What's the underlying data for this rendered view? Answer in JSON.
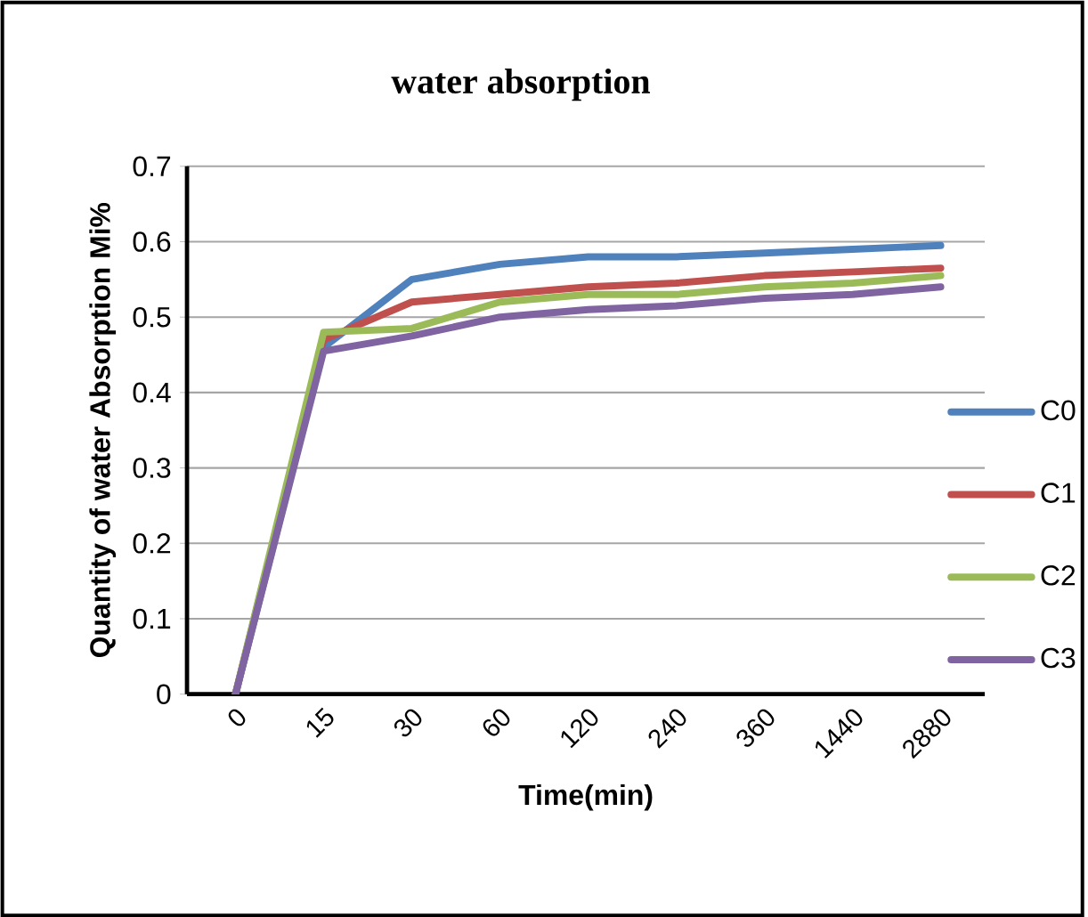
{
  "chart_data": {
    "type": "line",
    "title": "water absorption",
    "xlabel": "Time(min)",
    "ylabel": "Quantity of water Absorption Mi%",
    "categories": [
      "0",
      "15",
      "30",
      "60",
      "120",
      "240",
      "360",
      "1440",
      "2880"
    ],
    "series": [
      {
        "name": "C0",
        "color": "#4f81bd",
        "values": [
          0,
          0.46,
          0.55,
          0.57,
          0.58,
          0.58,
          0.585,
          0.59,
          0.595
        ]
      },
      {
        "name": "C1",
        "color": "#c0504d",
        "values": [
          0,
          0.47,
          0.52,
          0.53,
          0.54,
          0.545,
          0.555,
          0.56,
          0.565
        ]
      },
      {
        "name": "C2",
        "color": "#9bbb59",
        "values": [
          0,
          0.48,
          0.485,
          0.52,
          0.53,
          0.53,
          0.54,
          0.545,
          0.555
        ]
      },
      {
        "name": "C3",
        "color": "#8064a2",
        "values": [
          0,
          0.455,
          0.475,
          0.5,
          0.51,
          0.515,
          0.525,
          0.53,
          0.54
        ]
      }
    ],
    "ylim": [
      0,
      0.7
    ],
    "yticks": [
      0,
      0.1,
      0.2,
      0.3,
      0.4,
      0.5,
      0.6,
      0.7
    ],
    "grid": "y",
    "legend": "right",
    "marker": "none",
    "line_style": "solid"
  }
}
